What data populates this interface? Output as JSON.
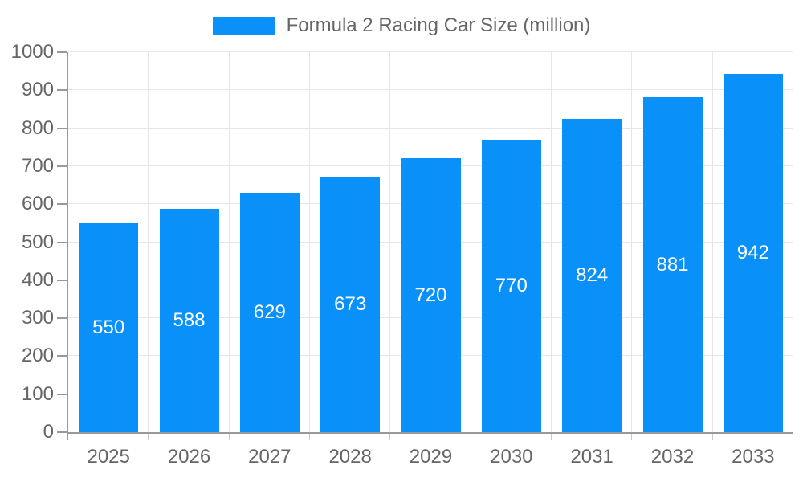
{
  "chart_data": {
    "type": "bar",
    "title": "Formula 2 Racing Car Size (million)",
    "categories": [
      "2025",
      "2026",
      "2027",
      "2028",
      "2029",
      "2030",
      "2031",
      "2032",
      "2033"
    ],
    "values": [
      550,
      588,
      629,
      673,
      720,
      770,
      824,
      881,
      942
    ],
    "xlabel": "",
    "ylabel": "",
    "ylim": [
      0,
      1000
    ],
    "ytick_step": 100,
    "y_tick_labels": [
      "0",
      "100",
      "200",
      "300",
      "400",
      "500",
      "600",
      "700",
      "800",
      "900",
      "1000"
    ],
    "grid": true,
    "legend_position": "top-center",
    "value_labels": "inside-center",
    "colors": {
      "bar": "#0991f9",
      "text": "#666666",
      "axis": "#999999",
      "grid": "#e6e6e6",
      "x_tick": "#cccccc",
      "value_label": "#ffffff"
    }
  }
}
